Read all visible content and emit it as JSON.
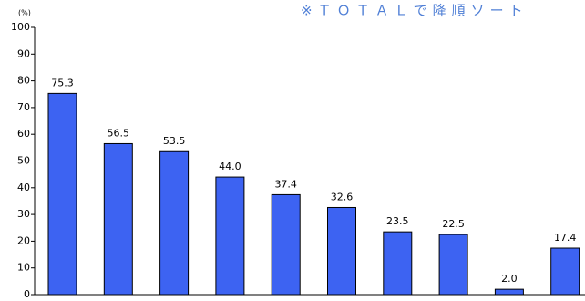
{
  "chart_data": {
    "type": "bar",
    "title": "※ＴＯＴＡＬで降順ソート",
    "y_label": "(%)",
    "categories": [
      null,
      null,
      null,
      null,
      null,
      null,
      null,
      null,
      null,
      null
    ],
    "values": [
      75.3,
      56.5,
      53.5,
      44.0,
      37.4,
      32.6,
      23.5,
      22.5,
      2.0,
      17.4
    ],
    "value_labels": [
      "75.3",
      "56.5",
      "53.5",
      "44.0",
      "37.4",
      "32.6",
      "23.5",
      "22.5",
      "2.0",
      "17.4"
    ],
    "color": "#3d63f2",
    "ylim": [
      0,
      100
    ],
    "yticks": [
      0,
      10,
      20,
      30,
      40,
      50,
      60,
      70,
      80,
      90,
      100
    ],
    "grid": false
  }
}
